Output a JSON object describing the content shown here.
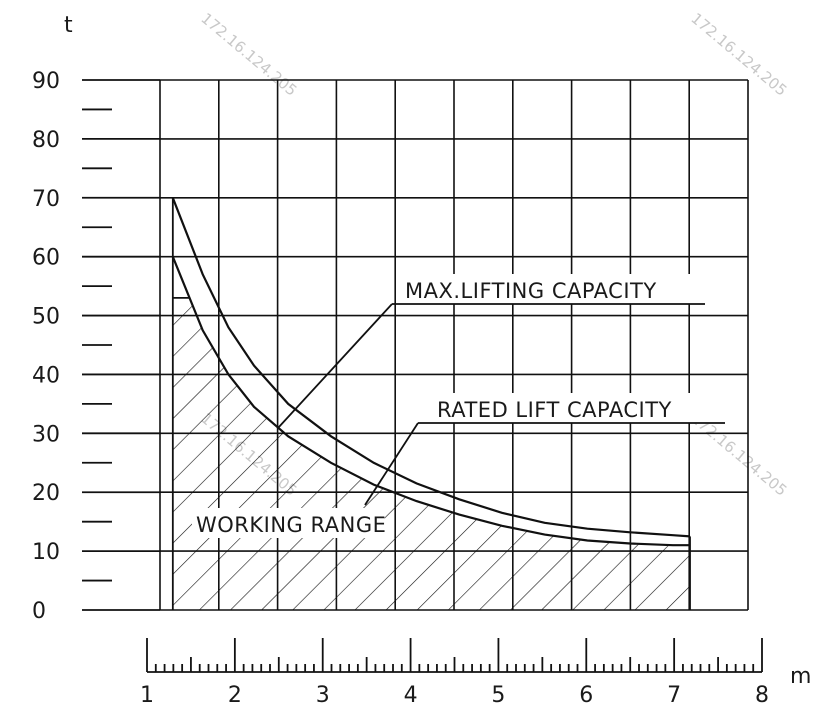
{
  "chart_data": {
    "type": "line",
    "xlabel": "m",
    "ylabel": "t",
    "xlim": [
      1,
      8
    ],
    "ylim": [
      0,
      90
    ],
    "x_ticks": [
      "1",
      "2",
      "3",
      "4",
      "5",
      "6",
      "7",
      "8"
    ],
    "y_ticks": [
      "0",
      "10",
      "20",
      "30",
      "40",
      "50",
      "60",
      "70",
      "80",
      "90"
    ],
    "series": [
      {
        "name": "MAX.LIFTING CAPACITY",
        "x": [
          1.15,
          1.5,
          1.8,
          2.1,
          2.5,
          3.0,
          3.5,
          4.0,
          4.5,
          5.0,
          5.5,
          6.0,
          6.5,
          7.0,
          7.2
        ],
        "y": [
          70,
          57,
          48,
          41.5,
          35,
          29.5,
          25,
          21.5,
          18.8,
          16.5,
          14.8,
          13.8,
          13.2,
          12.7,
          12.5
        ]
      },
      {
        "name": "RATED LIFT CAPACITY",
        "x": [
          1.15,
          1.5,
          1.8,
          2.1,
          2.5,
          3.0,
          3.5,
          4.0,
          4.5,
          5.0,
          5.5,
          6.0,
          6.5,
          7.0,
          7.2
        ],
        "y": [
          60,
          47.5,
          40,
          34.5,
          29.5,
          25,
          21.3,
          18.5,
          16.2,
          14.3,
          12.8,
          11.8,
          11.3,
          11.0,
          11.0
        ]
      }
    ],
    "working_range": {
      "label": "WORKING RANGE",
      "plateau_y": 53,
      "plateau_x": [
        1.15,
        1.35
      ],
      "x_end": 7.2
    },
    "annotations": [
      "MAX.LIFTING CAPACITY",
      "RATED LIFT CAPACITY",
      "WORKING RANGE"
    ],
    "grid": true
  },
  "watermark": {
    "text": "172.16.124.205"
  }
}
